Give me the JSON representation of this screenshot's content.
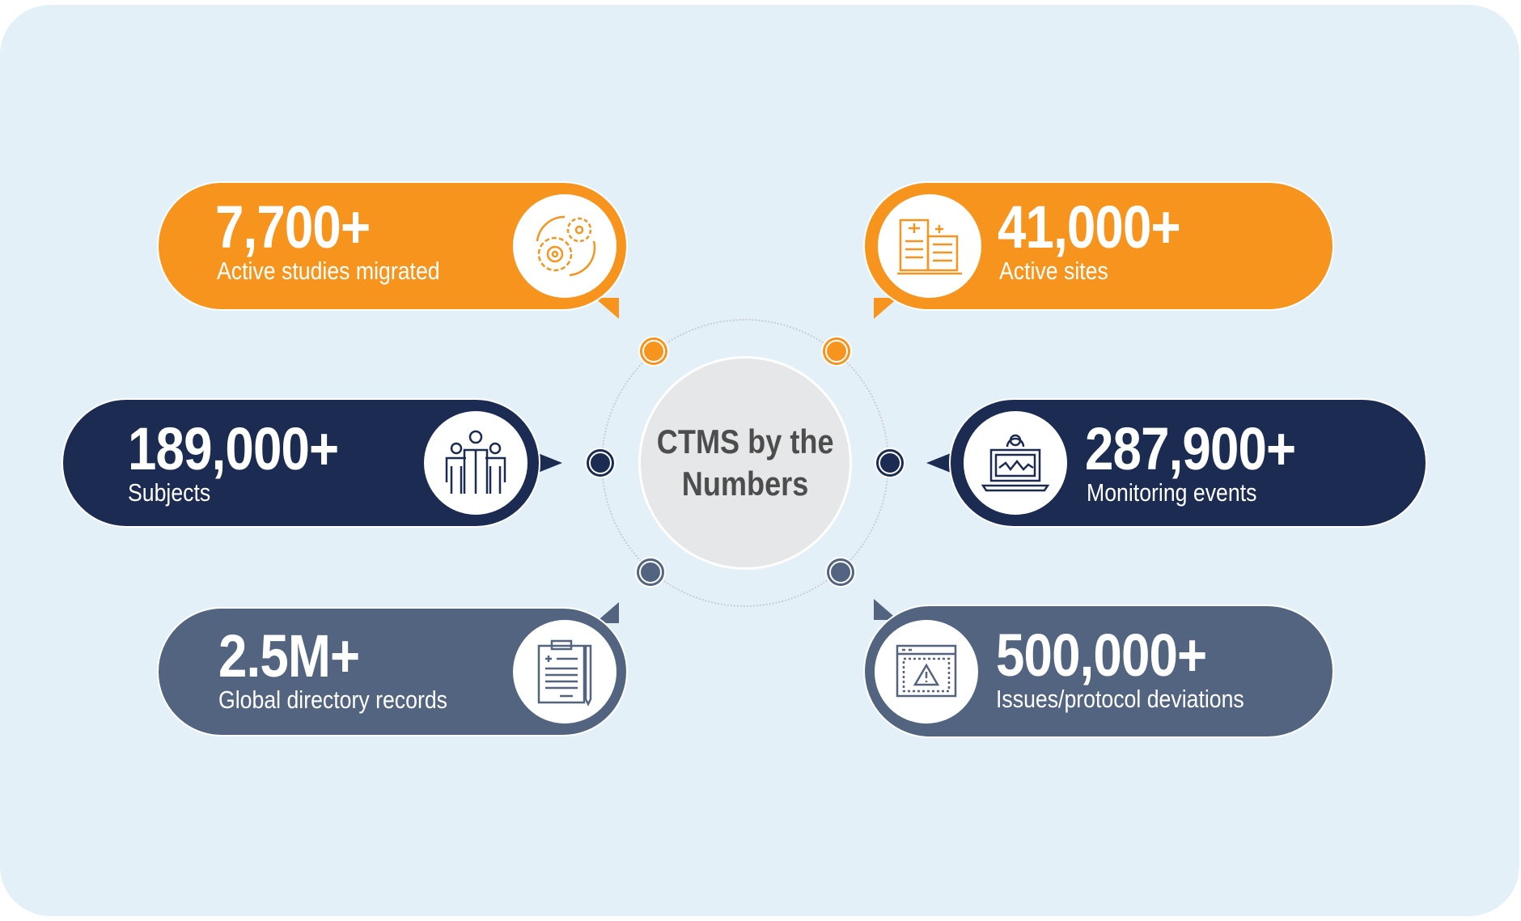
{
  "title_line1": "CTMS by the",
  "title_line2": "Numbers",
  "colors": {
    "orange": "#f7941e",
    "navy": "#1b2b52",
    "slate": "#52647f",
    "background": "#e4f0f7",
    "center": "#e6e7e8"
  },
  "stats": [
    {
      "value": "7,700+",
      "label": "Active studies migrated",
      "icon": "gears-icon"
    },
    {
      "value": "41,000+",
      "label": "Active sites",
      "icon": "hospital-building-icon"
    },
    {
      "value": "189,000+",
      "label": "Subjects",
      "icon": "people-group-icon"
    },
    {
      "value": "287,900+",
      "label": "Monitoring events",
      "icon": "laptop-monitoring-icon"
    },
    {
      "value": "2.5M+",
      "label": "Global directory records",
      "icon": "clipboard-records-icon"
    },
    {
      "value": "500,000+",
      "label": "Issues/protocol deviations",
      "icon": "warning-window-icon"
    }
  ]
}
